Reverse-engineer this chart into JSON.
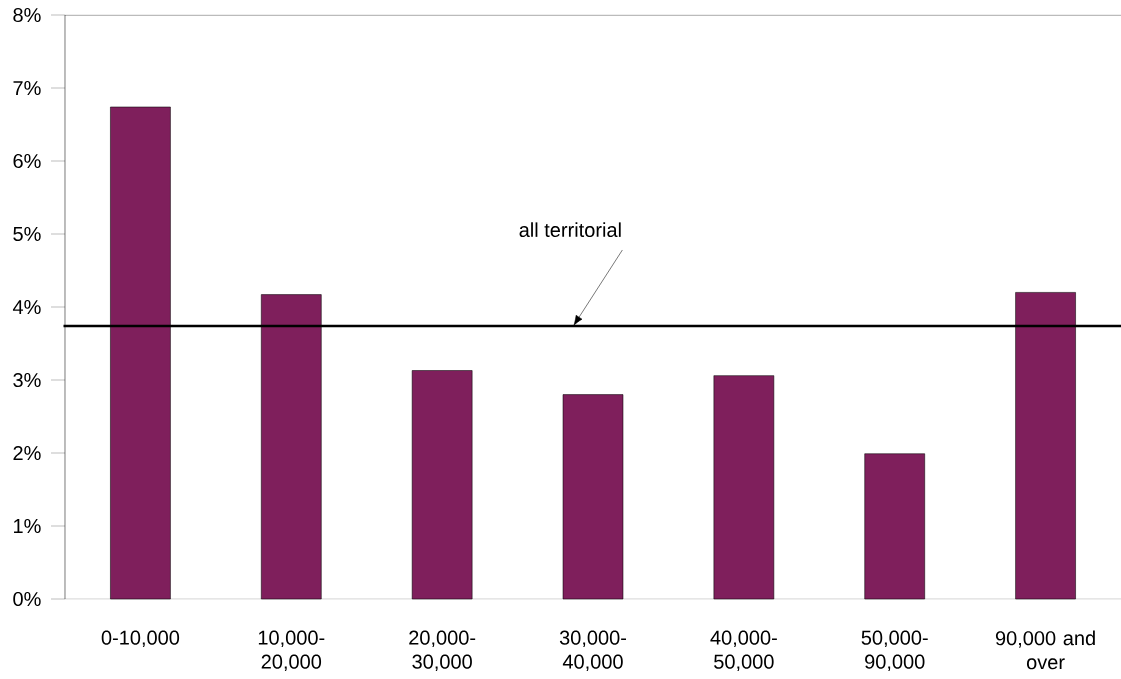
{
  "chart_data": {
    "type": "bar",
    "categories": [
      "0-10,000",
      "10,000-\n20,000",
      "20,000-\n30,000",
      "30,000-\n40,000",
      "40,000-\n50,000",
      "50,000-\n90,000",
      "90,000 and\nover"
    ],
    "values": [
      6.74,
      4.17,
      3.13,
      2.8,
      3.06,
      1.99,
      4.2
    ],
    "color": "#7f1f5c",
    "ylim": [
      0,
      8
    ],
    "yticks": [
      {
        "value": 0,
        "label": "0%"
      },
      {
        "value": 1,
        "label": "1%"
      },
      {
        "value": 2,
        "label": "2%"
      },
      {
        "value": 3,
        "label": "3%"
      },
      {
        "value": 4,
        "label": "4%"
      },
      {
        "value": 5,
        "label": "5%"
      },
      {
        "value": 6,
        "label": "6%"
      },
      {
        "value": 7,
        "label": "7%"
      },
      {
        "value": 8,
        "label": "8%"
      }
    ],
    "ref_lines": [
      {
        "axis": "y",
        "value": 3.74,
        "label": "all territorial"
      }
    ],
    "grid": false
  }
}
